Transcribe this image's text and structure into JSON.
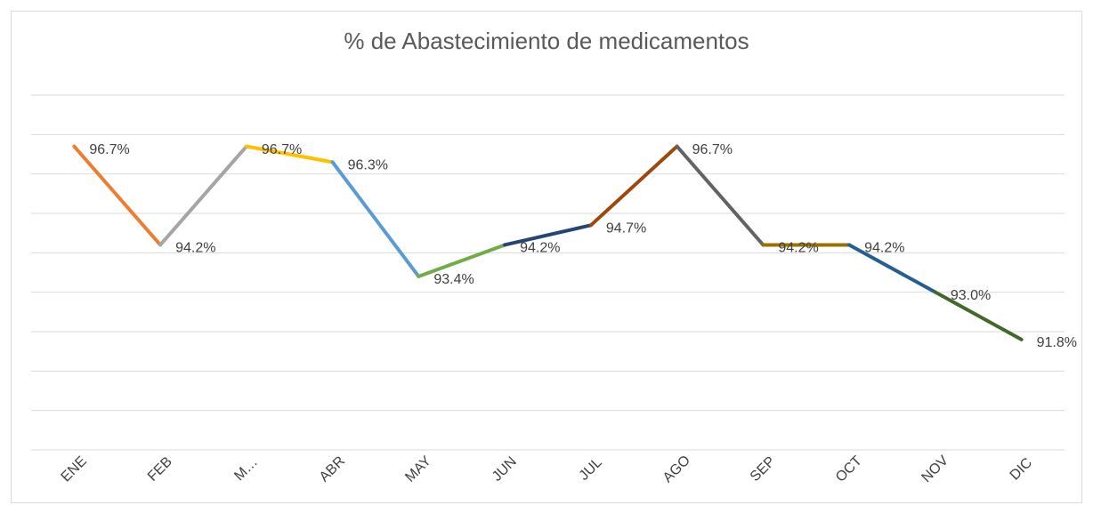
{
  "chart_data": {
    "type": "line",
    "title": "% de Abastecimiento de medicamentos",
    "categories": [
      "ENE",
      "FEB",
      "M…",
      "ABR",
      "MAY",
      "JUN",
      "JUL",
      "AGO",
      "SEP",
      "OCT",
      "NOV",
      "DIC"
    ],
    "series": [
      {
        "values": [
          96.7,
          94.2,
          96.7,
          96.3,
          93.4,
          94.2,
          94.7,
          96.7,
          94.2,
          94.2,
          93.0,
          91.8
        ],
        "value_labels": [
          "96.7%",
          "94.2%",
          "96.7%",
          "96.3%",
          "93.4%",
          "94.2%",
          "94.7%",
          "96.7%",
          "94.2%",
          "94.2%",
          "93.0%",
          "91.8%"
        ],
        "segment_colors": [
          "#ED7D31",
          "#A5A5A5",
          "#FFC000",
          "#5B9BD5",
          "#70AD47",
          "#264478",
          "#9E480E",
          "#636363",
          "#997300",
          "#255E91",
          "#43682B"
        ]
      }
    ],
    "ylim": [
      89,
      98
    ],
    "yticks": [
      89,
      90,
      91,
      92,
      93,
      94,
      95,
      96,
      97,
      98
    ],
    "ytick_labels": false,
    "grid": true
  }
}
